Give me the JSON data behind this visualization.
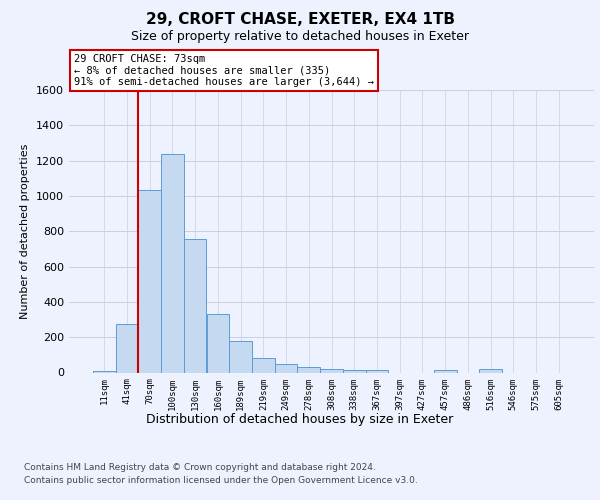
{
  "title1": "29, CROFT CHASE, EXETER, EX4 1TB",
  "title2": "Size of property relative to detached houses in Exeter",
  "xlabel": "Distribution of detached houses by size in Exeter",
  "ylabel": "Number of detached properties",
  "categories": [
    "11sqm",
    "41sqm",
    "70sqm",
    "100sqm",
    "130sqm",
    "160sqm",
    "189sqm",
    "219sqm",
    "249sqm",
    "278sqm",
    "308sqm",
    "338sqm",
    "367sqm",
    "397sqm",
    "427sqm",
    "457sqm",
    "486sqm",
    "516sqm",
    "546sqm",
    "575sqm",
    "605sqm"
  ],
  "values": [
    10,
    275,
    1035,
    1240,
    755,
    330,
    180,
    80,
    48,
    33,
    20,
    15,
    15,
    0,
    0,
    12,
    0,
    20,
    0,
    0,
    0
  ],
  "bar_color": "#c5d9f0",
  "bar_edge_color": "#5b9bd5",
  "vline_index": 2,
  "vline_color": "#cc0000",
  "annotation_text": "29 CROFT CHASE: 73sqm\n← 8% of detached houses are smaller (335)\n91% of semi-detached houses are larger (3,644) →",
  "ylim_max": 1600,
  "yticks": [
    0,
    200,
    400,
    600,
    800,
    1000,
    1200,
    1400,
    1600
  ],
  "footnote1": "Contains HM Land Registry data © Crown copyright and database right 2024.",
  "footnote2": "Contains public sector information licensed under the Open Government Licence v3.0.",
  "bg_color": "#eef2ff",
  "grid_color": "#c8cfe0"
}
